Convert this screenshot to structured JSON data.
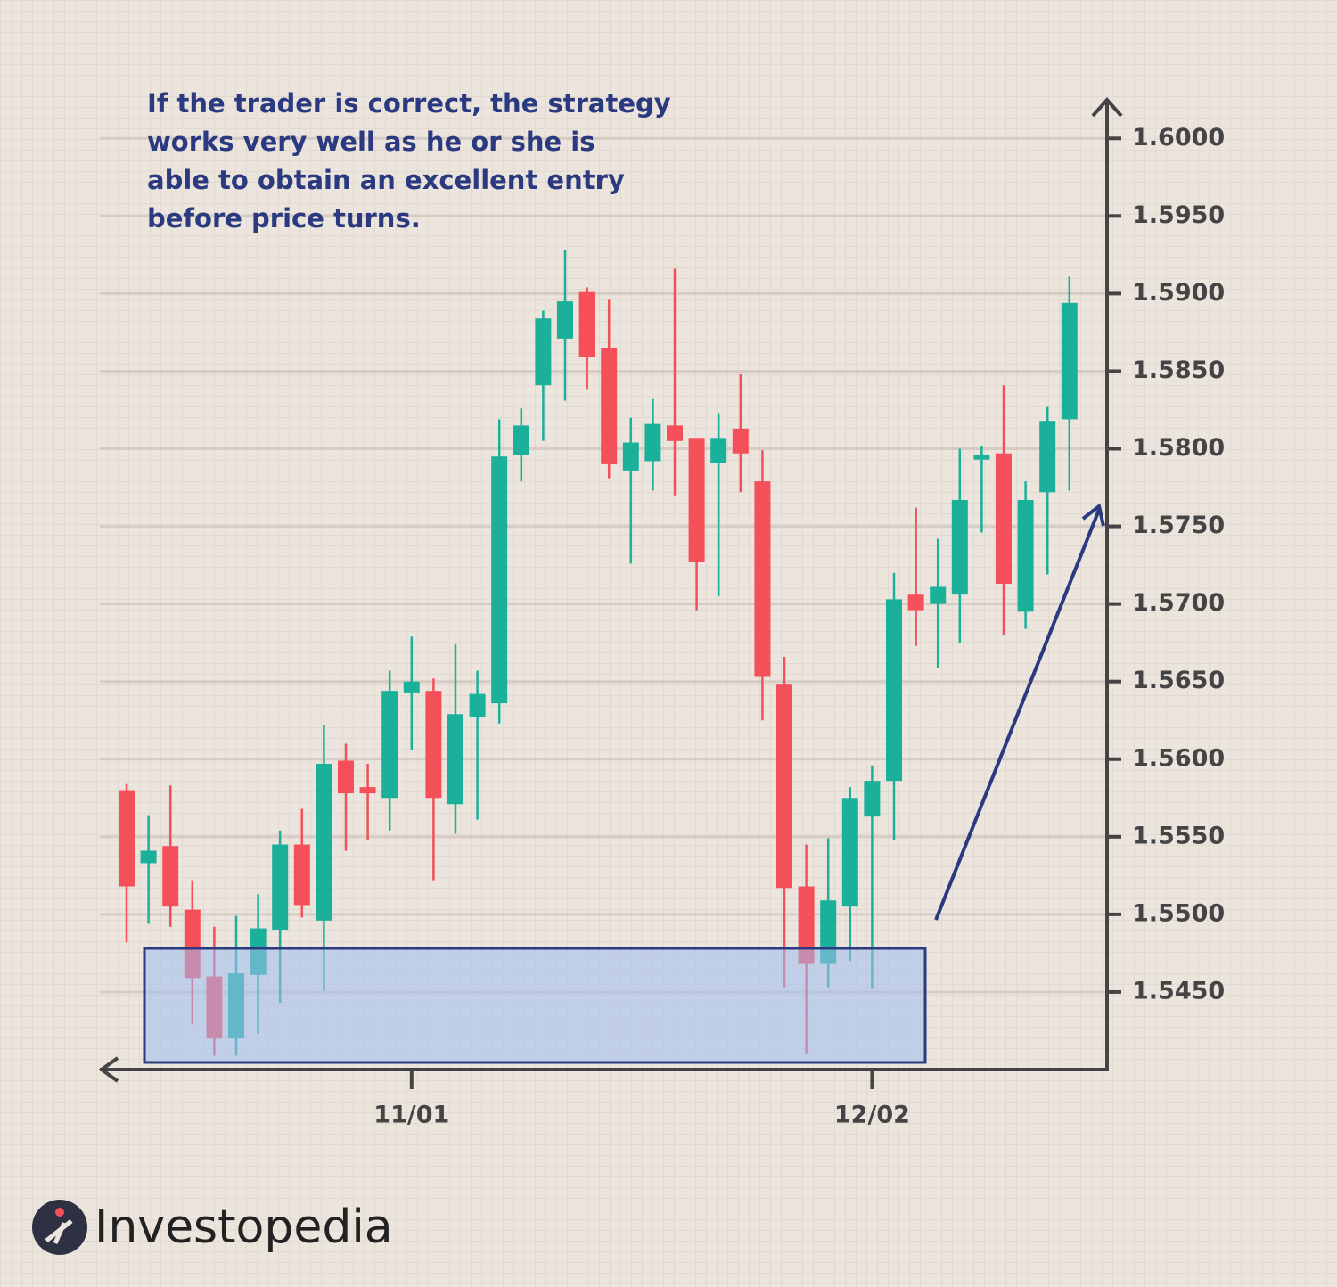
{
  "chart_data": {
    "type": "candlestick",
    "annotation": [
      "If the trader is correct, the strategy",
      "works very well as he or she is",
      "able to obtain an excellent entry",
      "before price turns."
    ],
    "categories": [
      null,
      null,
      null,
      null,
      null,
      null,
      null,
      null,
      null,
      null,
      null,
      null,
      null,
      "11/01",
      null,
      null,
      null,
      null,
      null,
      null,
      null,
      null,
      null,
      null,
      null,
      null,
      null,
      null,
      null,
      null,
      null,
      null,
      null,
      null,
      "12/02",
      null,
      null,
      null,
      null,
      null,
      null,
      null,
      null,
      null
    ],
    "open": [
      1.558,
      1.5533,
      1.5544,
      1.5503,
      1.546,
      1.542,
      1.5461,
      1.549,
      1.5545,
      1.5496,
      1.5599,
      1.5582,
      1.5575,
      1.5643,
      1.5644,
      1.5571,
      1.5627,
      1.5636,
      1.5796,
      1.5841,
      1.5871,
      1.5901,
      1.5865,
      1.5786,
      1.5792,
      1.5815,
      1.5807,
      1.5791,
      1.5813,
      1.5779,
      1.5648,
      1.5518,
      1.5468,
      1.5505,
      1.5563,
      1.5586,
      1.5706,
      1.57,
      1.5706,
      1.5793,
      1.5797,
      1.5695,
      1.5772,
      1.5819
    ],
    "high": [
      1.5584,
      1.5564,
      1.5583,
      1.5522,
      1.5492,
      1.5499,
      1.5513,
      1.5554,
      1.5568,
      1.5622,
      1.561,
      1.5597,
      1.5657,
      1.5679,
      1.5652,
      1.5674,
      1.5657,
      1.5819,
      1.5826,
      1.5889,
      1.5928,
      1.5904,
      1.5896,
      1.582,
      1.5832,
      1.5916,
      1.5807,
      1.5823,
      1.5848,
      1.5799,
      1.5666,
      1.5545,
      1.5549,
      1.5582,
      1.5596,
      1.572,
      1.5762,
      1.5742,
      1.58,
      1.5802,
      1.5841,
      1.5779,
      1.5827,
      1.5911
    ],
    "low": [
      1.5482,
      1.5494,
      1.5492,
      1.5429,
      1.5409,
      1.5409,
      1.5423,
      1.5443,
      1.5498,
      1.5451,
      1.5541,
      1.5548,
      1.5554,
      1.5606,
      1.5522,
      1.5552,
      1.5561,
      1.5623,
      1.5779,
      1.5805,
      1.5831,
      1.5838,
      1.5781,
      1.5726,
      1.5773,
      1.577,
      1.5696,
      1.5705,
      1.5772,
      1.5625,
      1.5453,
      1.541,
      1.5453,
      1.547,
      1.5452,
      1.5548,
      1.5673,
      1.5659,
      1.5675,
      1.5746,
      1.568,
      1.5684,
      1.5719,
      1.5773
    ],
    "close": [
      1.5518,
      1.5541,
      1.5505,
      1.5459,
      1.542,
      1.5462,
      1.5491,
      1.5545,
      1.5506,
      1.5597,
      1.5578,
      1.5578,
      1.5644,
      1.565,
      1.5575,
      1.5629,
      1.5642,
      1.5795,
      1.5815,
      1.5884,
      1.5895,
      1.5859,
      1.579,
      1.5804,
      1.5816,
      1.5805,
      1.5727,
      1.5807,
      1.5797,
      1.5653,
      1.5517,
      1.5468,
      1.5509,
      1.5575,
      1.5586,
      1.5703,
      1.5696,
      1.5711,
      1.5767,
      1.5796,
      1.5713,
      1.5767,
      1.5818,
      1.5894
    ],
    "up_color": "#1ab09a",
    "down_color": "#f5505a",
    "ylim": [
      1.54,
      1.6026
    ],
    "yticks": [
      {
        "value": 1.6,
        "label": "1.6000"
      },
      {
        "value": 1.595,
        "label": "1.5950"
      },
      {
        "value": 1.59,
        "label": "1.5900"
      },
      {
        "value": 1.585,
        "label": "1.5850"
      },
      {
        "value": 1.58,
        "label": "1.5800"
      },
      {
        "value": 1.575,
        "label": "1.5750"
      },
      {
        "value": 1.57,
        "label": "1.5700"
      },
      {
        "value": 1.565,
        "label": "1.5650"
      },
      {
        "value": 1.56,
        "label": "1.5600"
      },
      {
        "value": 1.555,
        "label": "1.5550"
      },
      {
        "value": 1.55,
        "label": "1.5500"
      },
      {
        "value": 1.545,
        "label": "1.5450"
      }
    ],
    "grid": true
  },
  "brand": "Investopedia"
}
